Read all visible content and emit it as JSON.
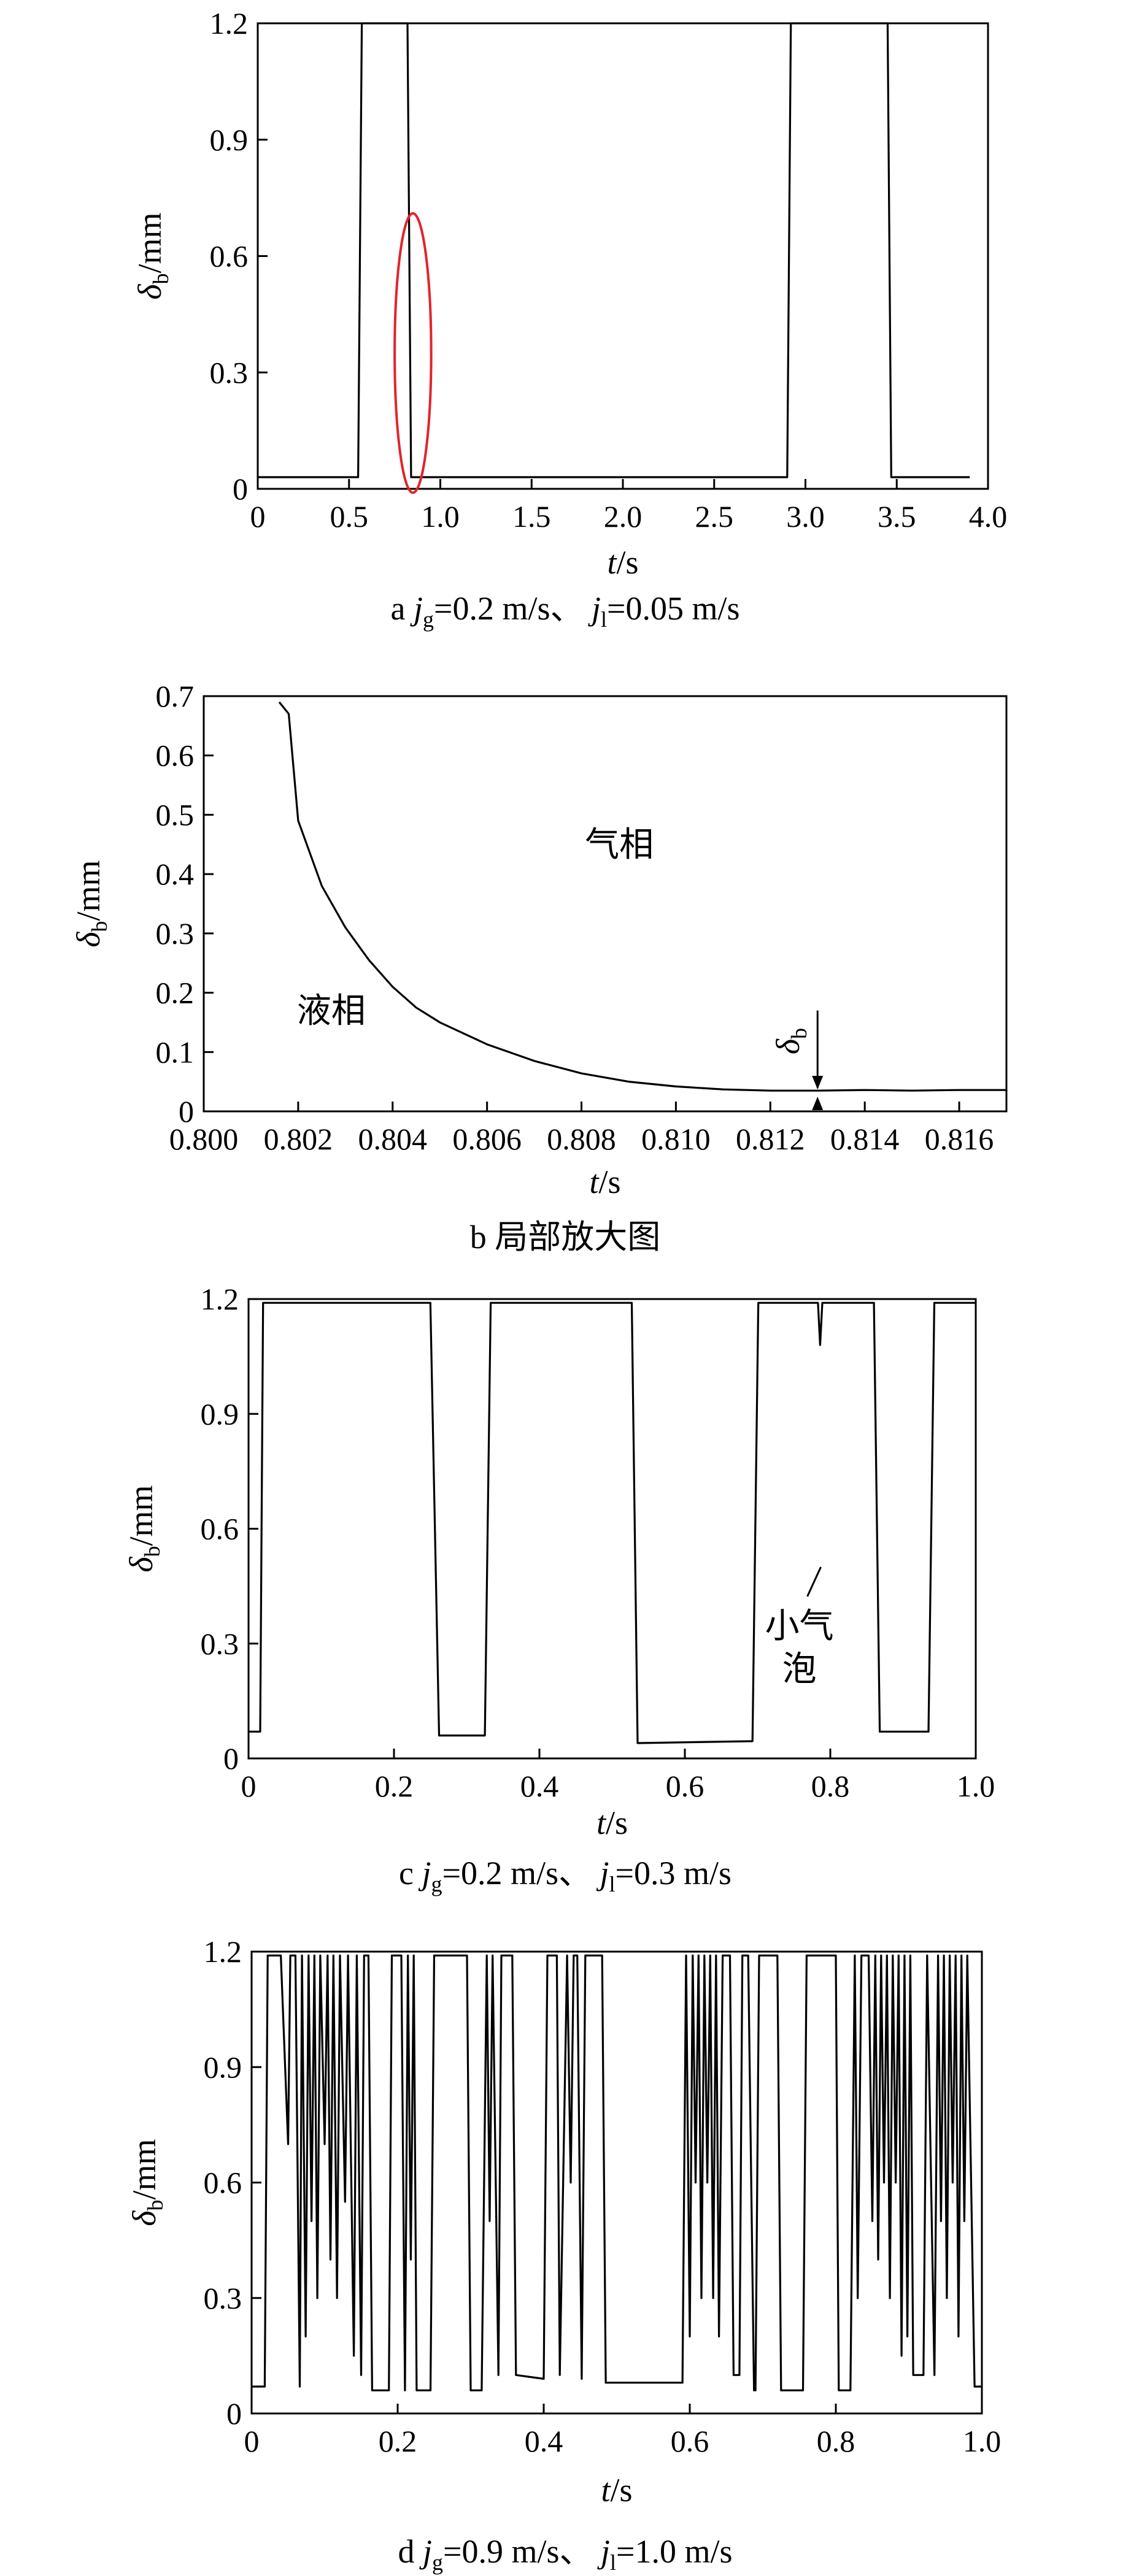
{
  "chart_data": [
    {
      "id": "a",
      "type": "line",
      "caption": {
        "letter": "a",
        "jg_label": "j",
        "jg_sub": "g",
        "jg_value": "=0.2 m/s",
        "sep": "、",
        "jl_label": "j",
        "jl_sub": "l",
        "jl_value": "=0.05 m/s"
      },
      "xlabel": {
        "var": "t",
        "unit": "/s"
      },
      "ylabel": {
        "var": "δ",
        "sub": "b",
        "unit": "/mm"
      },
      "xlim": [
        0,
        4.0
      ],
      "ylim": [
        0,
        1.2
      ],
      "xticks": [
        0,
        0.5,
        1.0,
        1.5,
        2.0,
        2.5,
        3.0,
        3.5,
        4.0
      ],
      "xtick_labels": [
        "0",
        "0.5",
        "1.0",
        "1.5",
        "2.0",
        "2.5",
        "3.0",
        "3.5",
        "4.0"
      ],
      "yticks": [
        0,
        0.3,
        0.6,
        0.9,
        1.2
      ],
      "ytick_labels": [
        "0",
        "0.3",
        "0.6",
        "0.9",
        "1.2"
      ],
      "series": [
        {
          "x": [
            0,
            0.55,
            0.57,
            0.82,
            0.84,
            2.9,
            2.92,
            3.45,
            3.47,
            3.9
          ],
          "y": [
            0.03,
            0.03,
            1.2,
            1.2,
            0.03,
            0.03,
            1.2,
            1.2,
            0.03,
            0.03
          ]
        }
      ],
      "highlight_ellipse": {
        "cx": 0.85,
        "cy": 0.35,
        "rx": 0.1,
        "ry": 0.36,
        "color": "#e0252b"
      }
    },
    {
      "id": "b",
      "type": "line",
      "caption": {
        "letter": "b",
        "text": "局部放大图"
      },
      "xlabel": {
        "var": "t",
        "unit": "/s"
      },
      "ylabel": {
        "var": "δ",
        "sub": "b",
        "unit": "/mm"
      },
      "xlim": [
        0.8,
        0.817
      ],
      "ylim": [
        0,
        0.7
      ],
      "xticks": [
        0.8,
        0.802,
        0.804,
        0.806,
        0.808,
        0.81,
        0.812,
        0.814,
        0.816
      ],
      "xtick_labels": [
        "0.800",
        "0.802",
        "0.804",
        "0.806",
        "0.808",
        "0.810",
        "0.812",
        "0.814",
        "0.816"
      ],
      "yticks": [
        0,
        0.1,
        0.2,
        0.3,
        0.4,
        0.5,
        0.6,
        0.7
      ],
      "ytick_labels": [
        "0",
        "0.1",
        "0.2",
        "0.3",
        "0.4",
        "0.5",
        "0.6",
        "0.7"
      ],
      "series": [
        {
          "x": [
            0.8016,
            0.8018,
            0.802,
            0.8025,
            0.803,
            0.8035,
            0.804,
            0.8045,
            0.805,
            0.806,
            0.807,
            0.808,
            0.809,
            0.81,
            0.811,
            0.812,
            0.813,
            0.814,
            0.815,
            0.816,
            0.817
          ],
          "y": [
            0.69,
            0.67,
            0.49,
            0.38,
            0.31,
            0.255,
            0.21,
            0.175,
            0.15,
            0.113,
            0.085,
            0.064,
            0.05,
            0.042,
            0.037,
            0.035,
            0.035,
            0.036,
            0.035,
            0.036,
            0.036
          ]
        }
      ],
      "labels": {
        "gas": "气相",
        "liquid": "液相",
        "delta_var": "δ",
        "delta_sub": "b"
      },
      "label_positions": {
        "gas": {
          "x": 0.8088,
          "y": 0.43
        },
        "liquid": {
          "x": 0.8027,
          "y": 0.15
        }
      },
      "arrow_x": 0.813,
      "arrow_y_top": 0.17,
      "arrow_y_line": 0.035
    },
    {
      "id": "c",
      "type": "line",
      "caption": {
        "letter": "c",
        "jg_label": "j",
        "jg_sub": "g",
        "jg_value": "=0.2 m/s",
        "sep": "、",
        "jl_label": "j",
        "jl_sub": "l",
        "jl_value": "=0.3 m/s"
      },
      "xlabel": {
        "var": "t",
        "unit": "/s"
      },
      "ylabel": {
        "var": "δ",
        "sub": "b",
        "unit": "/mm"
      },
      "xlim": [
        0,
        1.0
      ],
      "ylim": [
        0,
        1.2
      ],
      "xticks": [
        0,
        0.2,
        0.4,
        0.6,
        0.8,
        1.0
      ],
      "xtick_labels": [
        "0",
        "0.2",
        "0.4",
        "0.6",
        "0.8",
        "1.0"
      ],
      "yticks": [
        0,
        0.3,
        0.6,
        0.9,
        1.2
      ],
      "ytick_labels": [
        "0",
        "0.3",
        "0.6",
        "0.9",
        "1.2"
      ],
      "series": [
        {
          "x": [
            0,
            0.016,
            0.02,
            0.25,
            0.262,
            0.325,
            0.333,
            0.527,
            0.535,
            0.693,
            0.701,
            0.783,
            0.786,
            0.789,
            0.8,
            0.86,
            0.868,
            0.935,
            0.943,
            1.0
          ],
          "y": [
            0.07,
            0.07,
            1.19,
            1.19,
            0.06,
            0.06,
            1.19,
            1.19,
            0.04,
            0.045,
            1.19,
            1.19,
            1.08,
            1.19,
            1.19,
            1.19,
            0.07,
            0.07,
            1.19,
            1.19
          ]
        }
      ],
      "annotation": {
        "line1": "小气",
        "line2": "泡",
        "target_x": 0.787,
        "target_y": 0.5
      }
    },
    {
      "id": "d",
      "type": "line",
      "caption": {
        "letter": "d",
        "jg_label": "j",
        "jg_sub": "g",
        "jg_value": "=0.9 m/s",
        "sep": "、",
        "jl_label": "j",
        "jl_sub": "l",
        "jl_value": "=1.0 m/s"
      },
      "xlabel": {
        "var": "t",
        "unit": "/s"
      },
      "ylabel": {
        "var": "δ",
        "sub": "b",
        "unit": "/mm"
      },
      "xlim": [
        0,
        1.0
      ],
      "ylim": [
        0,
        1.2
      ],
      "xticks": [
        0,
        0.2,
        0.4,
        0.6,
        0.8,
        1.0
      ],
      "xtick_labels": [
        "0",
        "0.2",
        "0.4",
        "0.6",
        "0.8",
        "1.0"
      ],
      "yticks": [
        0,
        0.3,
        0.6,
        0.9,
        1.2
      ],
      "ytick_labels": [
        "0",
        "0.3",
        "0.6",
        "0.9",
        "1.2"
      ],
      "series": [
        {
          "x": [
            0,
            0.018,
            0.022,
            0.04,
            0.05,
            0.053,
            0.056,
            0.06,
            0.066,
            0.069,
            0.074,
            0.078,
            0.082,
            0.086,
            0.09,
            0.094,
            0.1,
            0.104,
            0.108,
            0.112,
            0.117,
            0.121,
            0.128,
            0.132,
            0.14,
            0.144,
            0.15,
            0.154,
            0.16,
            0.165,
            0.188,
            0.192,
            0.205,
            0.21,
            0.214,
            0.218,
            0.222,
            0.226,
            0.245,
            0.25,
            0.295,
            0.3,
            0.315,
            0.322,
            0.326,
            0.33,
            0.338,
            0.342,
            0.357,
            0.362,
            0.4,
            0.405,
            0.418,
            0.422,
            0.432,
            0.437,
            0.441,
            0.446,
            0.452,
            0.457,
            0.462,
            0.466,
            0.48,
            0.485,
            0.525,
            0.53,
            0.59,
            0.595,
            0.6,
            0.604,
            0.608,
            0.612,
            0.616,
            0.62,
            0.624,
            0.628,
            0.632,
            0.636,
            0.64,
            0.645,
            0.655,
            0.66,
            0.668,
            0.672,
            0.68,
            0.688,
            0.69,
            0.695,
            0.72,
            0.725,
            0.732,
            0.735,
            0.755,
            0.76,
            0.8,
            0.804,
            0.82,
            0.826,
            0.83,
            0.835,
            0.845,
            0.85,
            0.854,
            0.858,
            0.862,
            0.866,
            0.87,
            0.874,
            0.878,
            0.882,
            0.886,
            0.89,
            0.894,
            0.898,
            0.902,
            0.906,
            0.92,
            0.925,
            0.935,
            0.94,
            0.944,
            0.948,
            0.952,
            0.956,
            0.96,
            0.964,
            0.968,
            0.972,
            0.976,
            0.98,
            0.99,
            1.0
          ],
          "y": [
            0.07,
            0.07,
            1.19,
            1.19,
            0.7,
            1.19,
            1.19,
            1.19,
            0.07,
            1.19,
            0.2,
            1.19,
            0.5,
            1.19,
            0.3,
            1.19,
            0.7,
            1.19,
            0.4,
            1.19,
            0.3,
            1.19,
            0.55,
            1.19,
            0.15,
            1.19,
            0.1,
            1.19,
            1.19,
            0.06,
            0.06,
            1.19,
            1.19,
            0.06,
            1.19,
            0.4,
            1.19,
            0.06,
            0.06,
            1.19,
            1.19,
            0.06,
            0.06,
            1.19,
            0.5,
            1.19,
            0.1,
            1.19,
            1.19,
            0.1,
            0.09,
            1.19,
            1.19,
            0.1,
            1.19,
            0.6,
            1.19,
            1.19,
            0.09,
            1.19,
            1.19,
            1.19,
            1.19,
            0.08,
            0.08,
            0.08,
            0.08,
            1.19,
            0.2,
            1.19,
            0.6,
            1.19,
            0.3,
            1.19,
            0.6,
            1.19,
            0.3,
            1.19,
            0.2,
            1.19,
            1.19,
            0.1,
            0.1,
            1.19,
            1.19,
            0.06,
            0.06,
            1.19,
            1.19,
            0.06,
            0.06,
            0.06,
            0.06,
            1.19,
            1.19,
            0.06,
            0.06,
            1.19,
            0.3,
            1.19,
            1.19,
            0.5,
            1.19,
            0.4,
            1.19,
            0.6,
            1.19,
            0.3,
            1.19,
            0.6,
            1.19,
            0.15,
            1.19,
            0.2,
            1.19,
            0.1,
            0.1,
            1.19,
            0.1,
            1.19,
            0.5,
            1.19,
            0.3,
            1.19,
            0.6,
            1.19,
            0.2,
            1.19,
            0.5,
            1.19,
            0.07,
            0.07
          ]
        }
      ]
    }
  ]
}
